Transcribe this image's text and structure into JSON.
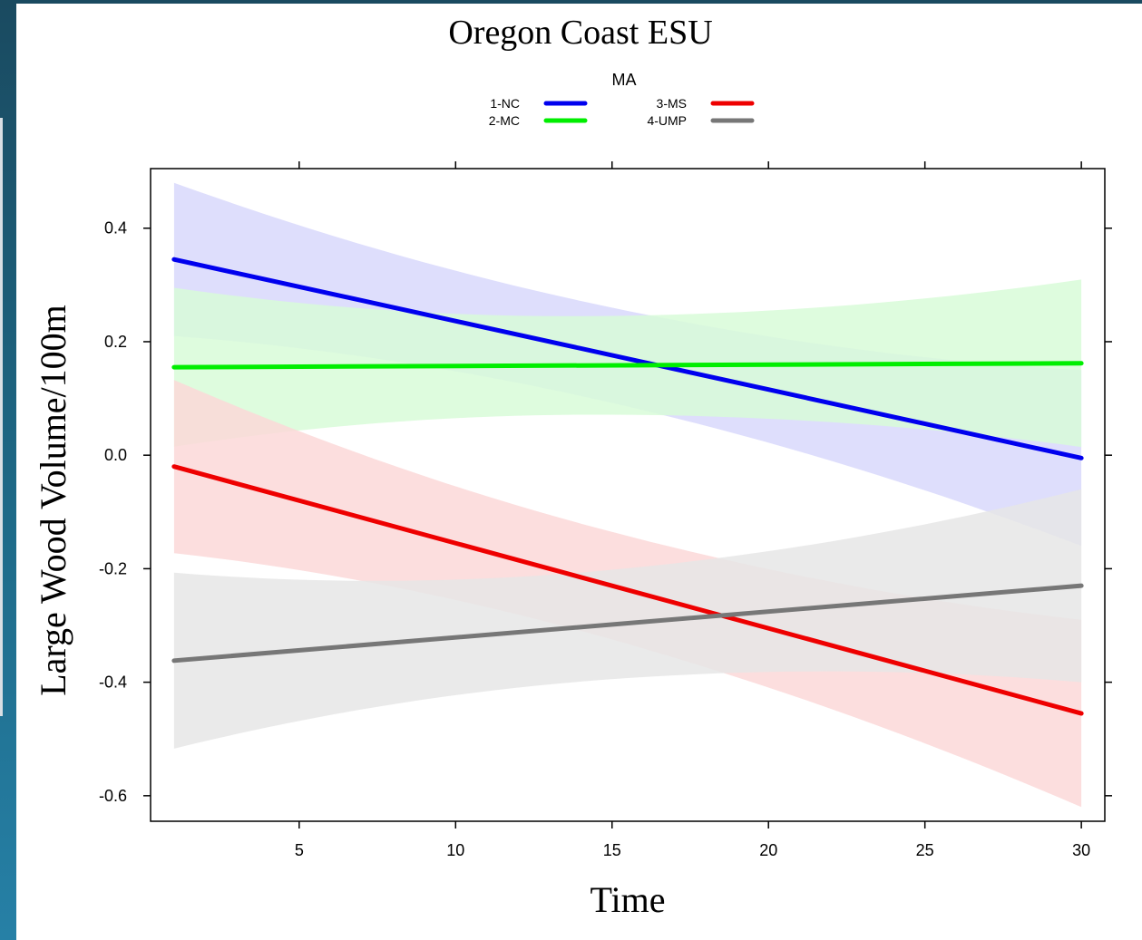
{
  "chart_data": {
    "type": "line",
    "title": "Oregon Coast ESU",
    "xlabel": "Time",
    "ylabel": "Large Wood Volume/100m",
    "xlim": [
      0.25,
      30.75
    ],
    "ylim": [
      -0.645,
      0.505
    ],
    "x_ticks": [
      5,
      10,
      15,
      20,
      25,
      30
    ],
    "y_ticks": [
      -0.6,
      -0.4,
      -0.2,
      0.0,
      0.2,
      0.4
    ],
    "y_tick_labels": [
      "-0.6",
      "-0.4",
      "-0.2",
      "0.0",
      "0.2",
      "0.4"
    ],
    "grid": false,
    "legend": {
      "title": "MA",
      "position": "top",
      "columns": 2
    },
    "series": [
      {
        "name": "1-NC",
        "color": "#0000ee",
        "band_color": "#d8d8fb",
        "x": [
          1,
          30
        ],
        "y": [
          0.345,
          -0.005
        ],
        "lower": [
          0.21,
          -0.16
        ],
        "upper": [
          0.48,
          0.15
        ],
        "band_shape": "flare"
      },
      {
        "name": "2-MC",
        "color": "#00ee00",
        "band_color": "#d8fbd8",
        "x": [
          1,
          30
        ],
        "y": [
          0.155,
          0.162
        ],
        "lower": [
          0.015,
          0.02
        ],
        "upper": [
          0.295,
          0.315
        ],
        "band_shape": "flare"
      },
      {
        "name": "3-MS",
        "color": "#ee0000",
        "band_color": "#fbd8d8",
        "x": [
          1,
          30
        ],
        "y": [
          -0.02,
          -0.455
        ],
        "lower": [
          -0.17,
          -0.62
        ],
        "upper": [
          0.135,
          -0.29
        ],
        "band_shape": "flare"
      },
      {
        "name": "4-UMP",
        "color": "#777777",
        "band_color": "#e6e6e6",
        "x": [
          1,
          30
        ],
        "y": [
          -0.362,
          -0.23
        ],
        "lower": [
          -0.52,
          -0.4
        ],
        "upper": [
          -0.21,
          -0.06
        ],
        "band_shape": "flare"
      }
    ]
  }
}
